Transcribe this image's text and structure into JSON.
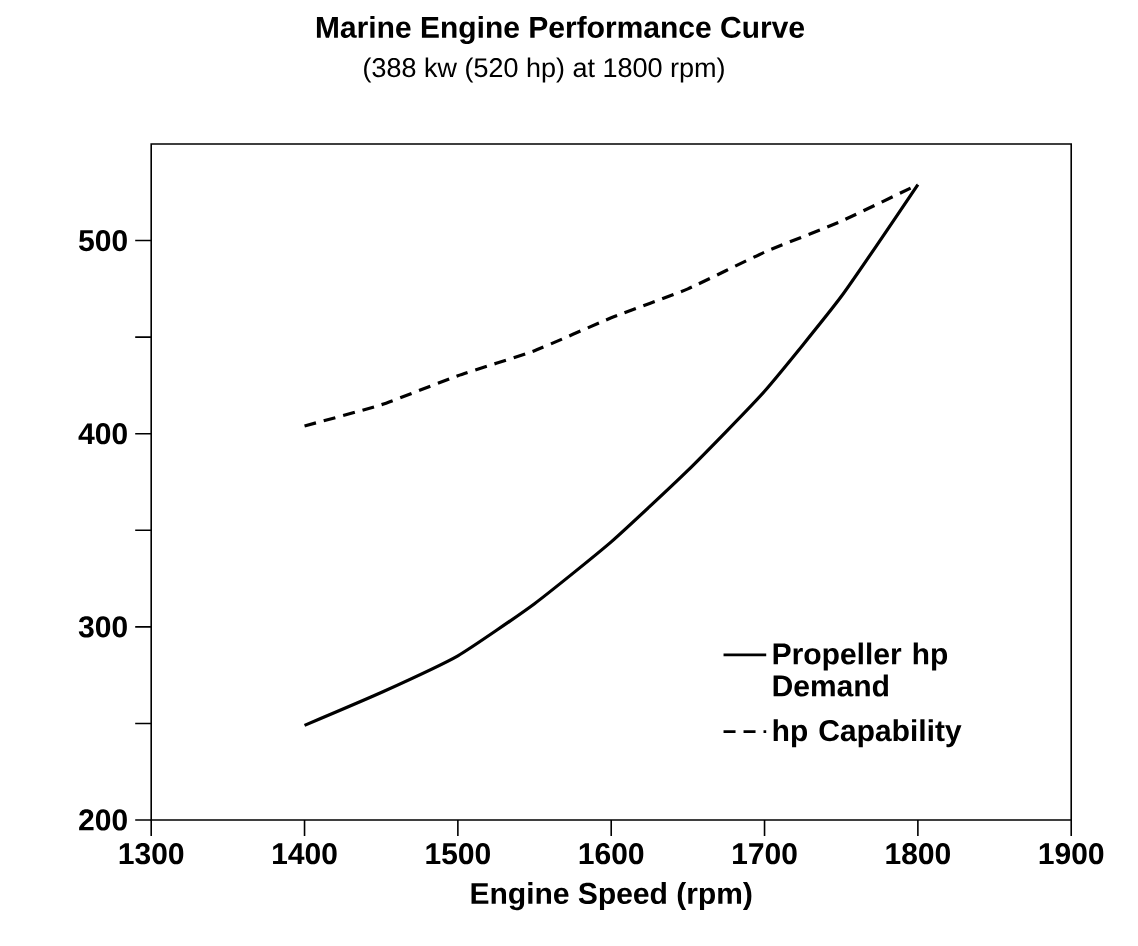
{
  "chart_data": {
    "type": "line",
    "title": "Marine Engine Performance Curve",
    "subtitle": "(388 kw (520 hp) at 1800 rpm)",
    "xlabel": "Engine Speed (rpm)",
    "x": [
      1400,
      1450,
      1500,
      1550,
      1600,
      1650,
      1700,
      1750,
      1800
    ],
    "series": [
      {
        "name": "Propeller hp Demand",
        "color": "#000000",
        "line_style": "solid",
        "values": [
          249,
          266,
          285,
          312,
          344,
          381,
          422,
          471,
          529
        ]
      },
      {
        "name": "hp Capability",
        "color": "#000000",
        "line_style": "dashed",
        "values": [
          404,
          415,
          430,
          443,
          460,
          475,
          494,
          510,
          529
        ]
      }
    ],
    "xlim": [
      1300,
      1900
    ],
    "xticks": [
      1300,
      1400,
      1500,
      1600,
      1700,
      1800,
      1900
    ],
    "ylim": [
      200,
      550
    ],
    "yticks": [
      200,
      {
        "value": 250,
        "label": null
      },
      300,
      {
        "value": 350,
        "label": null
      },
      400,
      {
        "value": 450,
        "label": null
      },
      500
    ],
    "grid": false,
    "legend": "bottom right",
    "marker": "none"
  }
}
